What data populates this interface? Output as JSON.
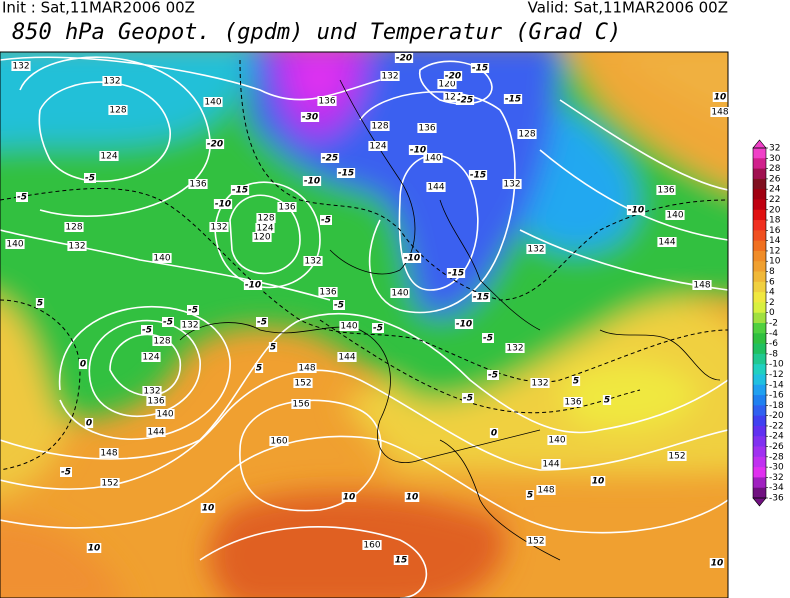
{
  "header": {
    "init": "Init : Sat,11MAR2006 00Z",
    "valid": "Valid: Sat,11MAR2006 00Z",
    "title": "850 hPa Geopot. (gpdm) und Temperatur (Grad C)"
  },
  "colorbar": {
    "labels": [
      32,
      30,
      28,
      26,
      24,
      22,
      20,
      18,
      16,
      14,
      12,
      10,
      8,
      6,
      4,
      2,
      0,
      -2,
      -4,
      -6,
      -8,
      -10,
      -12,
      -14,
      -16,
      -18,
      -20,
      -22,
      -24,
      -26,
      -28,
      -30,
      -32,
      -34,
      -36
    ],
    "colors": [
      "#f040c8",
      "#d0208c",
      "#a01050",
      "#801020",
      "#a00010",
      "#c00010",
      "#e01010",
      "#f03020",
      "#f05020",
      "#f07020",
      "#f08c28",
      "#f0a030",
      "#f0b838",
      "#f0d040",
      "#f0e840",
      "#d8f040",
      "#a0e040",
      "#50d040",
      "#30c040",
      "#20c060",
      "#20c890",
      "#20d0c0",
      "#20c0e0",
      "#20a0f0",
      "#2080f0",
      "#3060f0",
      "#4040f0",
      "#6030f0",
      "#8030f0",
      "#a030f0",
      "#c030f0",
      "#e030f0",
      "#a020c0",
      "#701080"
    ]
  },
  "map": {
    "geopotential_labels": [
      132,
      132,
      128,
      124,
      140,
      136,
      132,
      124,
      128,
      136,
      120,
      124,
      136,
      132,
      128,
      124,
      120,
      136,
      132,
      144,
      140,
      132,
      128,
      136,
      140,
      144,
      132,
      140,
      136,
      140,
      140,
      144,
      148,
      152,
      156,
      132,
      128,
      124,
      132,
      136,
      140,
      144,
      148,
      152,
      160,
      160,
      152,
      148,
      144,
      140,
      136,
      132,
      132,
      152,
      148,
      148,
      140,
      132,
      128
    ],
    "temperature_labels": [
      -5,
      -5,
      -20,
      -30,
      -25,
      -15,
      -10,
      -15,
      -10,
      -5,
      -10,
      -10,
      -20,
      -25,
      -15,
      -15,
      -15,
      -10,
      -15,
      -15,
      -10,
      -5,
      -10,
      -5,
      -5,
      -5,
      -5,
      -5,
      -5,
      5,
      0,
      0,
      -5,
      5,
      5,
      -5,
      -5,
      5,
      5,
      0,
      10,
      10,
      10,
      10,
      10,
      10,
      15,
      -20,
      10,
      5
    ]
  }
}
